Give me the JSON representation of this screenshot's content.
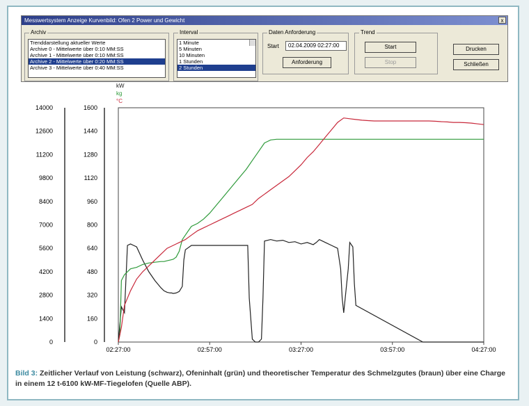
{
  "window": {
    "title": "Messwertsystem Anzeige Kurvenbild: Ofen 2 Power und Gewicht",
    "close_label": "x"
  },
  "archiv": {
    "group_label": "Archiv",
    "items": [
      "Trenddarstellung aktueller Werte",
      "Archive 0 - Mittelwerte über 0:10 MM:SS",
      "Archive 1 - Mittelwerte über 0:10 MM:SS",
      "Archive 2 - Mittelwerte über 0:20 MM:SS",
      "Archive 3 - Mittelwerte über 0:40 MM:SS"
    ],
    "selected_index": 3
  },
  "interval": {
    "group_label": "Interval",
    "items": [
      "1 Minute",
      "5 Minuten",
      "10 Minuten",
      "1 Stunden",
      "2 Stunden"
    ],
    "selected_index": 4
  },
  "daten": {
    "group_label": "Daten Anforderung",
    "start_label": "Start",
    "start_value": "02.04.2009 02:27:00",
    "request_button": "Anforderung"
  },
  "trend": {
    "group_label": "Trend",
    "start_button": "Start",
    "stop_button": "Stop"
  },
  "actions": {
    "print_button": "Drucken",
    "close_button": "Schließen"
  },
  "chart_data": {
    "type": "line",
    "units": [
      "kW",
      "kg",
      "°C"
    ],
    "unit_colors": [
      "#222222",
      "#2e9a3a",
      "#c8283a"
    ],
    "left_axis_ticks": [
      "14000",
      "12600",
      "11200",
      "9800",
      "8400",
      "7000",
      "5600",
      "4200",
      "2800",
      "1400",
      "0"
    ],
    "right_axis_ticks": [
      "1600",
      "1440",
      "1280",
      "1120",
      "960",
      "800",
      "640",
      "480",
      "320",
      "160",
      "0"
    ],
    "x_ticks": [
      "02:27:00",
      "02:57:00",
      "03:27:00",
      "03:57:00",
      "04:27:00"
    ],
    "xlim_minutes": [
      0,
      120
    ],
    "ylim": [
      0,
      1600
    ],
    "series": [
      {
        "color": "#222222",
        "x": [
          0,
          1,
          2,
          3,
          4,
          5,
          6,
          8,
          10,
          12,
          14,
          15,
          16,
          17,
          17.5,
          18,
          19,
          20,
          21,
          21.5,
          22,
          24,
          26,
          28,
          30,
          32,
          34,
          36,
          38,
          40,
          42,
          42.5,
          43,
          44,
          45,
          46,
          47,
          47.5,
          48,
          50,
          52,
          54,
          56,
          58,
          60,
          62,
          64,
          65,
          66,
          68,
          70,
          72,
          73,
          73.5,
          74,
          75,
          75.5,
          76,
          77,
          77.5,
          78,
          100,
          101,
          102,
          103,
          104,
          105,
          106,
          107,
          108,
          109,
          110,
          111,
          112,
          113,
          114,
          115,
          120
        ],
        "y": [
          0,
          240,
          200,
          660,
          670,
          660,
          650,
          560,
          480,
          420,
          370,
          350,
          340,
          335,
          335,
          332,
          335,
          345,
          380,
          560,
          630,
          660,
          660,
          660,
          660,
          660,
          660,
          660,
          660,
          660,
          660,
          660,
          300,
          20,
          0,
          0,
          20,
          300,
          690,
          700,
          690,
          695,
          680,
          685,
          670,
          680,
          665,
          680,
          700,
          680,
          660,
          640,
          500,
          300,
          200,
          400,
          500,
          680,
          650,
          400,
          250,
          0,
          0,
          0,
          0,
          0,
          0,
          0,
          0,
          0,
          0,
          0,
          0,
          0,
          0,
          0,
          0,
          0
        ]
      },
      {
        "color": "#2e9a3a",
        "x": [
          0,
          0.5,
          1,
          2,
          3,
          4,
          5,
          6,
          7,
          8,
          10,
          12,
          14,
          15,
          16,
          17,
          18,
          19,
          20,
          21,
          22,
          23,
          24,
          26,
          28,
          30,
          32,
          34,
          36,
          38,
          40,
          42,
          44,
          46,
          48,
          50,
          52,
          54,
          56,
          58,
          60,
          62,
          64,
          66,
          68,
          70,
          72,
          74,
          76,
          78,
          80,
          82,
          84,
          86,
          88,
          90,
          92,
          94,
          96,
          98,
          100,
          102,
          104,
          106,
          108,
          110,
          112,
          114,
          116,
          118,
          120
        ],
        "y": [
          0,
          50,
          420,
          460,
          480,
          500,
          505,
          510,
          520,
          530,
          540,
          545,
          550,
          550,
          555,
          560,
          565,
          580,
          620,
          700,
          730,
          760,
          790,
          810,
          840,
          880,
          930,
          980,
          1030,
          1080,
          1130,
          1180,
          1240,
          1300,
          1360,
          1380,
          1385,
          1385,
          1385,
          1385,
          1385,
          1385,
          1385,
          1385,
          1385,
          1385,
          1385,
          1385,
          1385,
          1385,
          1385,
          1385,
          1385,
          1385,
          1385,
          1385,
          1385,
          1385,
          1385,
          1385,
          1385,
          1385,
          1385,
          1385,
          1385,
          1385,
          1385,
          1385,
          1385,
          1385,
          1385
        ]
      },
      {
        "color": "#c8283a",
        "x": [
          0,
          1,
          2,
          3,
          4,
          6,
          8,
          10,
          12,
          14,
          16,
          18,
          20,
          22,
          24,
          26,
          28,
          30,
          32,
          34,
          36,
          38,
          40,
          42,
          44,
          46,
          48,
          50,
          52,
          54,
          56,
          58,
          60,
          62,
          64,
          66,
          68,
          70,
          72,
          74,
          76,
          78,
          80,
          82,
          84,
          86,
          88,
          90,
          92,
          94,
          96,
          98,
          100,
          102,
          104,
          106,
          108,
          110,
          112,
          114,
          116,
          118,
          120
        ],
        "y": [
          0,
          100,
          250,
          300,
          350,
          430,
          480,
          520,
          560,
          600,
          640,
          660,
          680,
          700,
          730,
          760,
          780,
          800,
          820,
          840,
          860,
          880,
          900,
          920,
          940,
          980,
          1010,
          1040,
          1070,
          1100,
          1130,
          1170,
          1210,
          1260,
          1300,
          1350,
          1400,
          1450,
          1500,
          1530,
          1525,
          1520,
          1515,
          1512,
          1510,
          1510,
          1510,
          1510,
          1510,
          1510,
          1510,
          1510,
          1510,
          1510,
          1508,
          1505,
          1503,
          1500,
          1500,
          1498,
          1495,
          1490,
          1485
        ]
      }
    ]
  },
  "caption": {
    "lead": "Bild 3:",
    "text": " Zeitlicher Verlauf von Leistung (schwarz), Ofeninhalt (grün) und theoretischer Temperatur des Schmelzgutes (braun) über eine Charge in einem 12 t-6100 kW-MF-Tiegelofen (Quelle ABP)."
  }
}
